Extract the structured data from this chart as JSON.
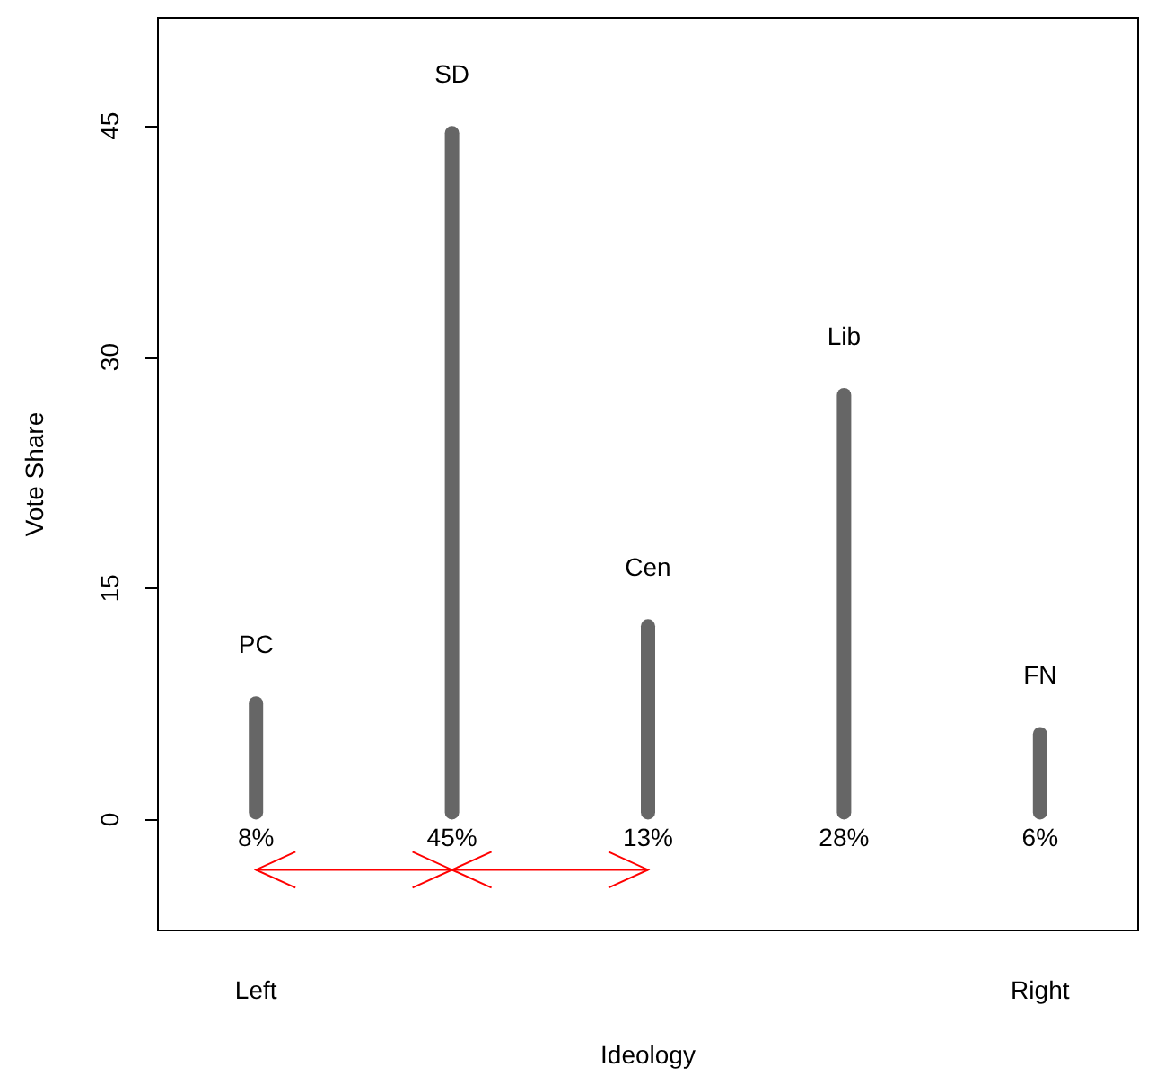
{
  "chart_data": {
    "type": "bar",
    "xlabel": "Ideology",
    "ylabel": "Vote Share",
    "categories": [
      "Left",
      null,
      null,
      null,
      "Right"
    ],
    "series": [
      {
        "name": "PC",
        "color": "#666666",
        "values": [
          8,
          null,
          null,
          null,
          null
        ],
        "value_labels": [
          "8%",
          null,
          null,
          null,
          null
        ]
      },
      {
        "name": "SD",
        "color": "#666666",
        "values": [
          null,
          45,
          null,
          null,
          null
        ],
        "value_labels": [
          null,
          "45%",
          null,
          null,
          null
        ]
      },
      {
        "name": "Cen",
        "color": "#666666",
        "values": [
          null,
          null,
          13,
          null,
          null
        ],
        "value_labels": [
          null,
          null,
          "13%",
          null,
          null
        ]
      },
      {
        "name": "Lib",
        "color": "#666666",
        "values": [
          null,
          null,
          null,
          28,
          null
        ],
        "value_labels": [
          null,
          null,
          null,
          "28%",
          null
        ]
      },
      {
        "name": "FN",
        "color": "#666666",
        "values": [
          null,
          null,
          null,
          null,
          6
        ],
        "value_labels": [
          null,
          null,
          null,
          null,
          "6%"
        ]
      }
    ],
    "ylim": [
      -7.2,
      52
    ],
    "yticks": [
      0,
      15,
      30,
      45
    ],
    "grid": false
  }
}
